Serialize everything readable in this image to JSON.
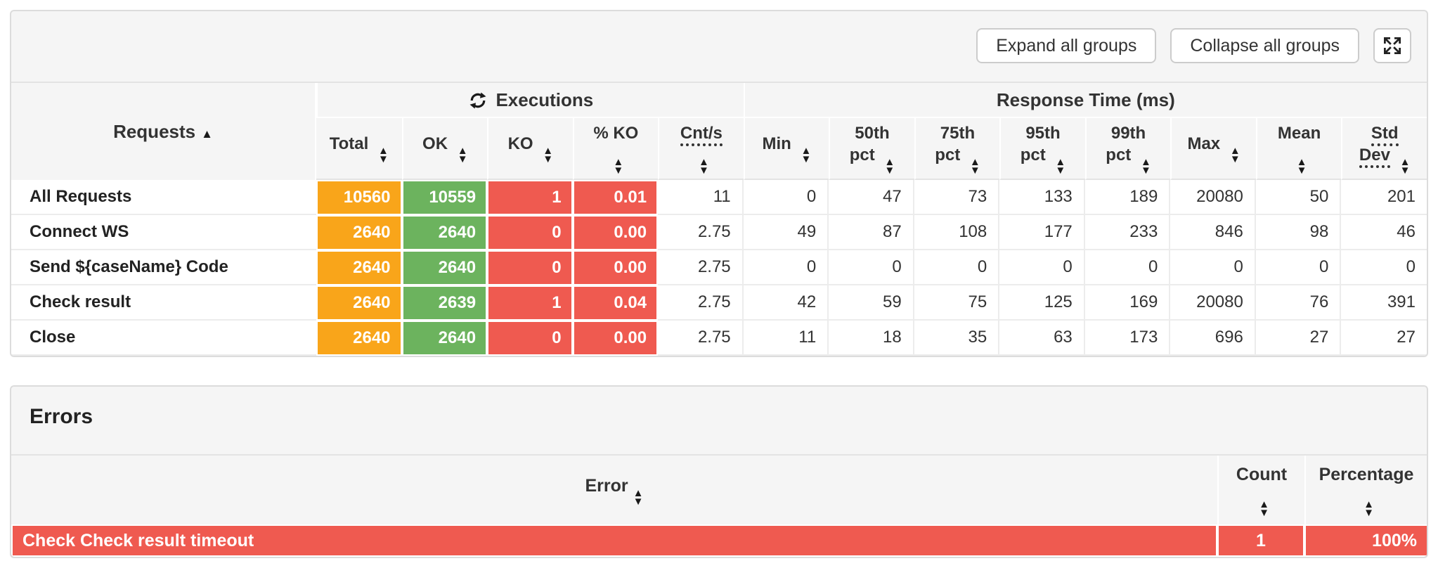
{
  "icons": {
    "sort_asc": "▲",
    "sort_desc": "▼"
  },
  "toolbar": {
    "expand_label": "Expand all groups",
    "collapse_label": "Collapse all groups"
  },
  "stats_table": {
    "requests_header": "Requests",
    "group_headers": {
      "executions": "Executions",
      "response_time": "Response Time (ms)"
    },
    "columns": [
      {
        "key": "total",
        "label": "Total"
      },
      {
        "key": "ok",
        "label": "OK"
      },
      {
        "key": "ko",
        "label": "KO"
      },
      {
        "key": "ko_pct",
        "label": "% KO",
        "icon_break": true
      },
      {
        "key": "cnt_s",
        "label": "Cnt/s",
        "icon_break": true,
        "dotted": true
      },
      {
        "key": "min",
        "label": "Min"
      },
      {
        "key": "p50",
        "label": "50th pct",
        "word_break": true
      },
      {
        "key": "p75",
        "label": "75th pct",
        "word_break": true
      },
      {
        "key": "p95",
        "label": "95th pct",
        "word_break": true
      },
      {
        "key": "p99",
        "label": "99th pct",
        "word_break": true
      },
      {
        "key": "max",
        "label": "Max"
      },
      {
        "key": "mean",
        "label": "Mean",
        "icon_break": true
      },
      {
        "key": "std",
        "label": "Std Dev",
        "word_break": true,
        "dotted": true
      }
    ],
    "rows": [
      {
        "name": "All Requests",
        "total": "10560",
        "ok": "10559",
        "ko": "1",
        "ko_pct": "0.01",
        "cnt_s": "11",
        "min": "0",
        "p50": "47",
        "p75": "73",
        "p95": "133",
        "p99": "189",
        "max": "20080",
        "mean": "50",
        "std": "201"
      },
      {
        "name": "Connect WS",
        "total": "2640",
        "ok": "2640",
        "ko": "0",
        "ko_pct": "0.00",
        "cnt_s": "2.75",
        "min": "49",
        "p50": "87",
        "p75": "108",
        "p95": "177",
        "p99": "233",
        "max": "846",
        "mean": "98",
        "std": "46"
      },
      {
        "name": "Send ${caseName} Code",
        "total": "2640",
        "ok": "2640",
        "ko": "0",
        "ko_pct": "0.00",
        "cnt_s": "2.75",
        "min": "0",
        "p50": "0",
        "p75": "0",
        "p95": "0",
        "p99": "0",
        "max": "0",
        "mean": "0",
        "std": "0"
      },
      {
        "name": "Check result",
        "total": "2640",
        "ok": "2639",
        "ko": "1",
        "ko_pct": "0.04",
        "cnt_s": "2.75",
        "min": "42",
        "p50": "59",
        "p75": "75",
        "p95": "125",
        "p99": "169",
        "max": "20080",
        "mean": "76",
        "std": "391"
      },
      {
        "name": "Close",
        "total": "2640",
        "ok": "2640",
        "ko": "0",
        "ko_pct": "0.00",
        "cnt_s": "2.75",
        "min": "11",
        "p50": "18",
        "p75": "35",
        "p95": "63",
        "p99": "173",
        "max": "696",
        "mean": "27",
        "std": "27"
      }
    ]
  },
  "errors_panel": {
    "title": "Errors",
    "columns": [
      {
        "key": "error",
        "label": "Error"
      },
      {
        "key": "count",
        "label": "Count",
        "icon_break": true
      },
      {
        "key": "percentage",
        "label": "Percentage",
        "icon_break": true
      }
    ],
    "rows": [
      {
        "error": "Check Check result timeout",
        "count": "1",
        "percentage": "100%"
      }
    ]
  },
  "colors": {
    "total": "#f9a51a",
    "ok": "#6cb35e",
    "ko": "#ef5a50",
    "error_row": "#ef5a50",
    "panel_bg": "#f5f5f5"
  }
}
